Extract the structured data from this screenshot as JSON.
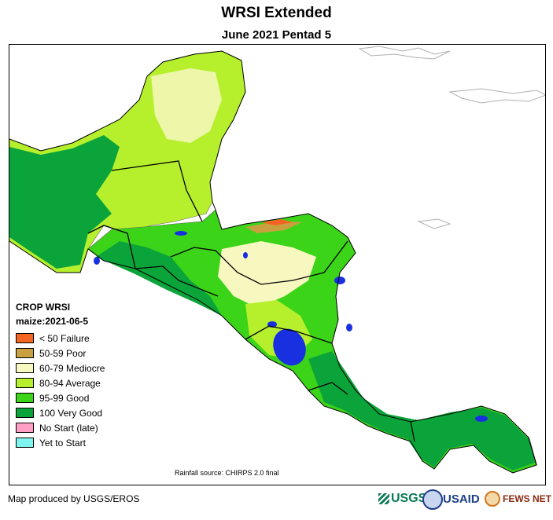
{
  "title": "WRSI Extended",
  "subtitle": "June 2021 Pentad 5",
  "legend": {
    "title": "CROP WRSI",
    "subtitle": "maize:2021-06-5",
    "items": [
      {
        "label": "< 50  Failure",
        "color": "#f26522"
      },
      {
        "label": "50-59 Poor",
        "color": "#c8a040"
      },
      {
        "label": "60-79 Mediocre",
        "color": "#f7f7c0"
      },
      {
        "label": "80-94 Average",
        "color": "#b6f02c"
      },
      {
        "label": "95-99 Good",
        "color": "#3cd418"
      },
      {
        "label": "100 Very Good",
        "color": "#0aa43a"
      },
      {
        "label": "No Start (late)",
        "color": "#ff9fc8"
      },
      {
        "label": "Yet to Start",
        "color": "#7ff5f0"
      }
    ]
  },
  "source": "Rainfall source: CHIRPS 2.0 final",
  "credit": "Map produced by USGS/EROS",
  "logos": {
    "usgs": "USGS",
    "usaid": "USAID",
    "fews": "FEWS NET"
  },
  "colors": {
    "water": "#ffffff",
    "lake": "#1830e0",
    "border": "#000000"
  }
}
